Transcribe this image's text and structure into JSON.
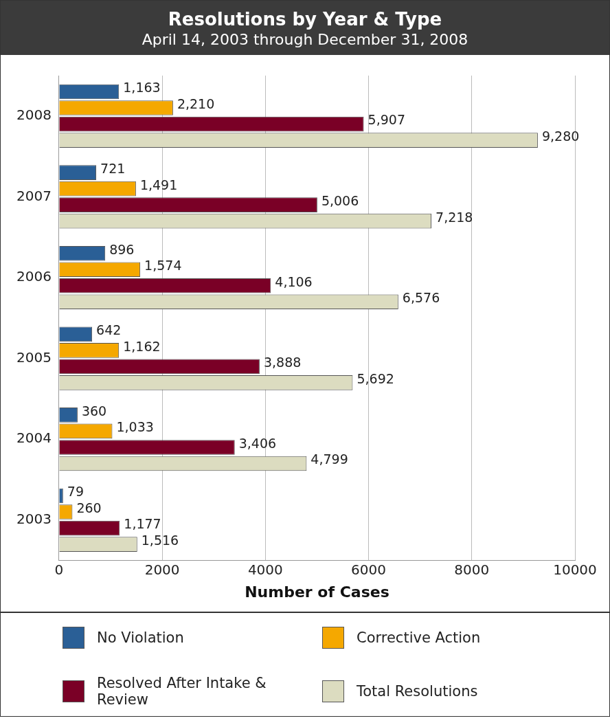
{
  "chart_data": {
    "type": "bar",
    "orientation": "horizontal",
    "title": "Resolutions by Year & Type",
    "subtitle": "April 14, 2003 through December 31, 2008",
    "xlabel": "Number of Cases",
    "categories": [
      "2008",
      "2007",
      "2006",
      "2005",
      "2004",
      "2003"
    ],
    "series": [
      {
        "name": "No Violation",
        "color": "#2a5f96",
        "values": [
          1163,
          721,
          896,
          642,
          360,
          79
        ],
        "value_labels": [
          "1,163",
          "721",
          "896",
          "642",
          "360",
          "79"
        ]
      },
      {
        "name": "Corrective Action",
        "color": "#f5a800",
        "values": [
          2210,
          1491,
          1574,
          1162,
          1033,
          260
        ],
        "value_labels": [
          "2,210",
          "1,491",
          "1,574",
          "1,162",
          "1,033",
          "260"
        ]
      },
      {
        "name": "Resolved After Intake & Review",
        "color": "#7a0026",
        "values": [
          5907,
          5006,
          4106,
          3888,
          3406,
          1177
        ],
        "value_labels": [
          "5,907",
          "5,006",
          "4,106",
          "3,888",
          "3,406",
          "1,177"
        ]
      },
      {
        "name": "Total Resolutions",
        "color": "#dcdcc0",
        "values": [
          9280,
          7218,
          6576,
          5692,
          4799,
          1516
        ],
        "value_labels": [
          "9,280",
          "7,218",
          "6,576",
          "5,692",
          "4,799",
          "1,516"
        ]
      }
    ],
    "xlim": [
      0,
      10000
    ],
    "xticks": [
      0,
      2000,
      4000,
      6000,
      8000,
      10000
    ],
    "grid": "x",
    "legend": "bottom"
  }
}
